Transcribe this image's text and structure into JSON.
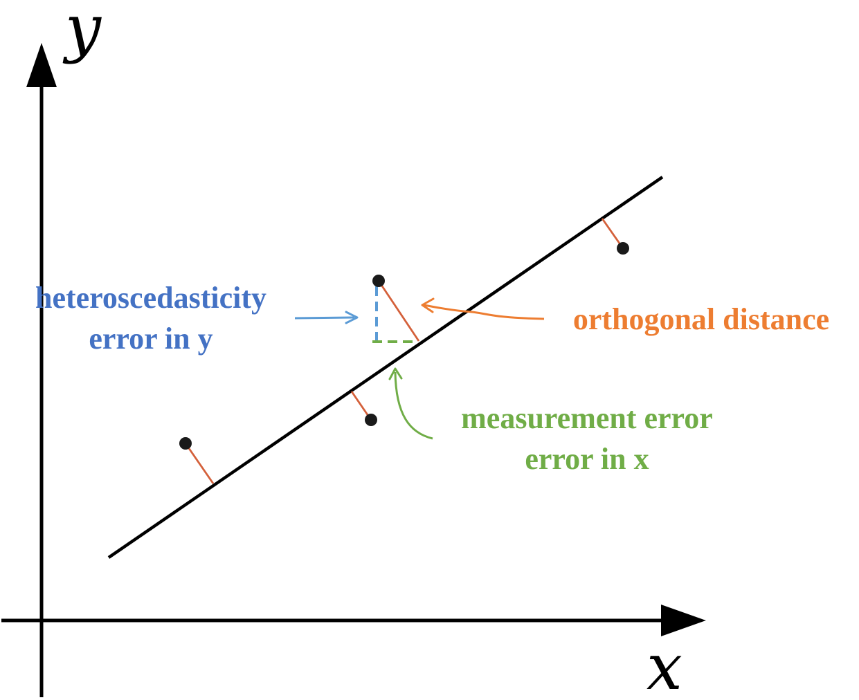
{
  "axes": {
    "x_label": "x",
    "y_label": "y"
  },
  "annotations": {
    "heteroscedasticity_line1": "heteroscedasticity",
    "heteroscedasticity_line2": "error in y",
    "orthogonal": "orthogonal distance",
    "measurement_line1": "measurement error",
    "measurement_line2": "error in x"
  },
  "colors": {
    "axis": "#000000",
    "fit_line": "#000000",
    "points": "#1a1a1a",
    "residual": "#d4603a",
    "heteroscedasticity": "#4472c4",
    "y_error_dashes": "#5b9bd5",
    "orthogonal": "#ed7d31",
    "measurement": "#70ad47"
  },
  "icons": {
    "axis_arrowheads": "triangle-arrowhead",
    "annotation_arrows": "line-arrow"
  }
}
